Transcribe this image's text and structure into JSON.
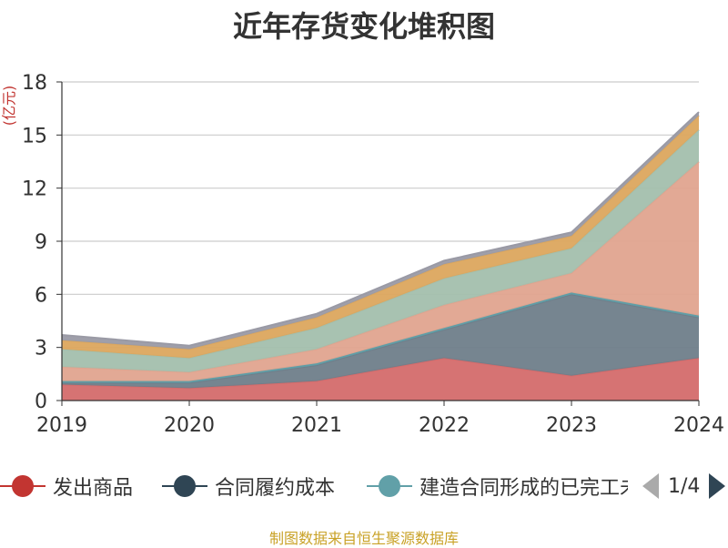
{
  "chart_data": {
    "type": "area",
    "title": "近年存货变化堆积图",
    "ylabel": "(亿元)",
    "xlabel": "",
    "ylim": [
      0,
      18
    ],
    "yticks": [
      0,
      3,
      6,
      9,
      12,
      15,
      18
    ],
    "x": [
      "2019",
      "2020",
      "2021",
      "2022",
      "2023",
      "2024"
    ],
    "stacked": true,
    "grid": true,
    "legend_position": "bottom",
    "series": [
      {
        "name": "发出商品",
        "color": "#d46c6c",
        "values": [
          0.9,
          0.7,
          1.1,
          2.4,
          1.4,
          2.4
        ]
      },
      {
        "name": "合同履约成本",
        "color": "#6f7e8a",
        "values": [
          0.1,
          0.3,
          0.9,
          1.6,
          4.6,
          2.3
        ]
      },
      {
        "name": "建造合同形成的已完工未结算资产",
        "color": "#5f9ea7",
        "values": [
          0.1,
          0.1,
          0.1,
          0.1,
          0.1,
          0.1
        ]
      },
      {
        "name": "",
        "color": "#e0a48f",
        "values": [
          0.8,
          0.5,
          0.8,
          1.3,
          1.1,
          8.7
        ]
      },
      {
        "name": "",
        "color": "#a3bfad",
        "values": [
          1.0,
          0.8,
          1.2,
          1.5,
          1.4,
          1.8
        ]
      },
      {
        "name": "",
        "color": "#dca75e",
        "values": [
          0.5,
          0.5,
          0.6,
          0.8,
          0.7,
          0.8
        ]
      },
      {
        "name": "",
        "color": "#9a9aa5",
        "values": [
          0.3,
          0.2,
          0.2,
          0.2,
          0.2,
          0.2
        ]
      }
    ]
  },
  "legend": {
    "visible_items": [
      "发出商品",
      "合同履约成本",
      "建造合同形成的已完工未结算资产"
    ],
    "marker_colors": [
      "#c23531",
      "#2f4554",
      "#61a0a8"
    ],
    "pager_text": "1/4"
  },
  "source_note": "制图数据来自恒生聚源数据库"
}
